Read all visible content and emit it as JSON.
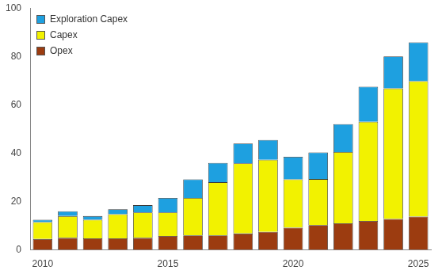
{
  "chart_data": {
    "type": "bar",
    "stacked": true,
    "grid": false,
    "legend": "top-left",
    "categories": [
      "2010",
      null,
      null,
      null,
      null,
      "2015",
      null,
      null,
      null,
      null,
      "2020",
      null,
      null,
      null,
      null,
      "2025"
    ],
    "series": [
      {
        "name": "Opex",
        "color": "#9c3c10",
        "values": [
          4.5,
          5,
          4.8,
          4.8,
          5,
          5.8,
          6,
          6,
          6.8,
          7.5,
          9.2,
          10.3,
          11,
          12,
          12.8,
          13.8
        ]
      },
      {
        "name": "Capex",
        "color": "#f2f200",
        "values": [
          7,
          9,
          7.7,
          10,
          10.5,
          9.7,
          15.5,
          22,
          29,
          29.8,
          20,
          19,
          29.5,
          41,
          54,
          56
        ]
      },
      {
        "name": "Exploration Capex",
        "color": "#1ea0e0",
        "values": [
          1,
          2,
          1.5,
          2,
          3,
          6,
          7.7,
          8,
          8.2,
          8.2,
          9.3,
          11,
          11.5,
          14.5,
          13.2,
          16
        ]
      }
    ],
    "ylim": [
      0,
      100
    ],
    "yticks": [
      0,
      20,
      40,
      60,
      80,
      100
    ]
  }
}
